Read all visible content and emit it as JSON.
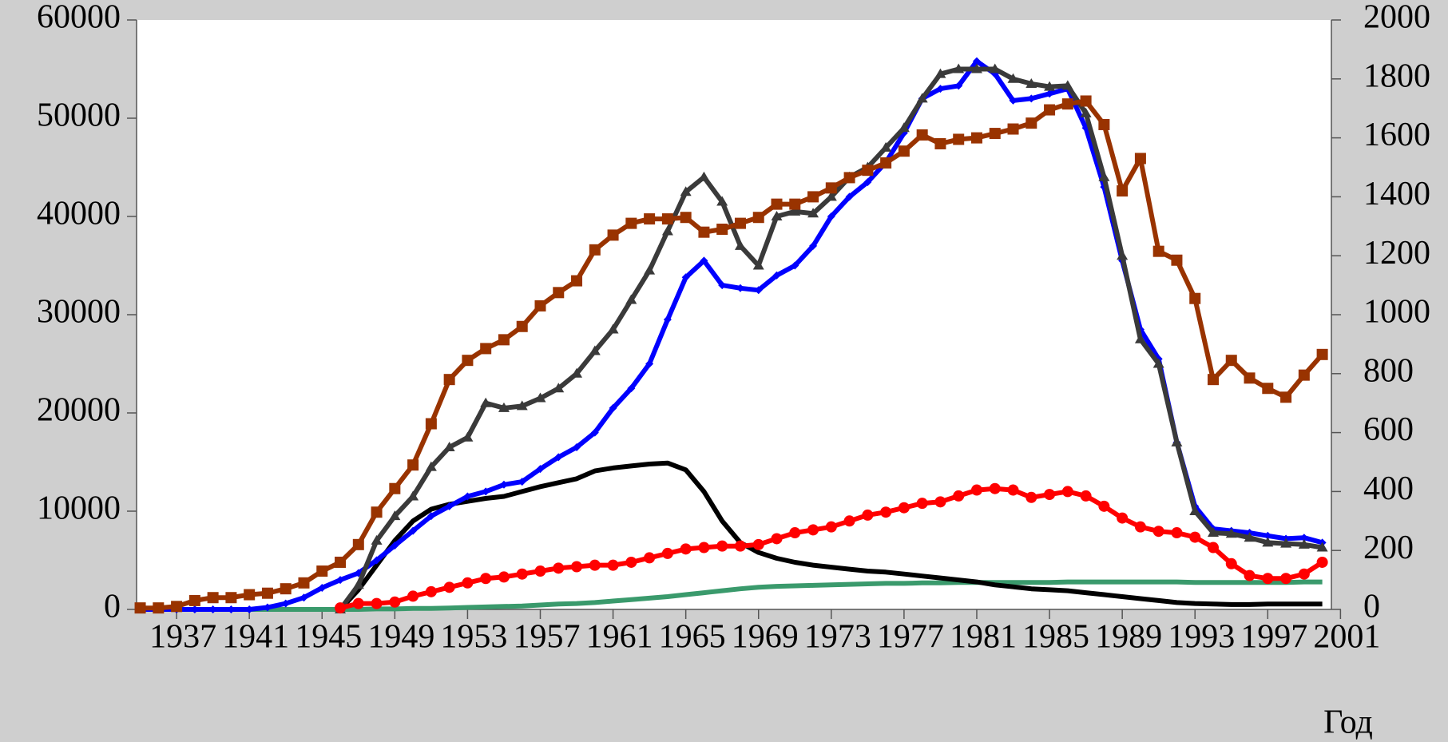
{
  "chart_data": {
    "type": "line",
    "x_label": "Год",
    "x": [
      1935,
      1936,
      1937,
      1938,
      1939,
      1940,
      1941,
      1942,
      1943,
      1944,
      1945,
      1946,
      1947,
      1948,
      1949,
      1950,
      1951,
      1952,
      1953,
      1954,
      1955,
      1956,
      1957,
      1958,
      1959,
      1960,
      1961,
      1962,
      1963,
      1964,
      1965,
      1966,
      1967,
      1968,
      1969,
      1970,
      1971,
      1972,
      1973,
      1974,
      1975,
      1976,
      1977,
      1978,
      1979,
      1980,
      1981,
      1982,
      1983,
      1984,
      1985,
      1986,
      1987,
      1988,
      1989,
      1990,
      1991,
      1992,
      1993,
      1994,
      1995,
      1996,
      1997,
      1998,
      1999,
      2000
    ],
    "xlim": [
      1934.8,
      2000.5
    ],
    "xticks": [
      1937,
      1941,
      1945,
      1949,
      1953,
      1957,
      1961,
      1965,
      1969,
      1973,
      1977,
      1981,
      1985,
      1989,
      1993,
      1997,
      2001
    ],
    "ylim": [
      0,
      60000
    ],
    "yticks": [
      0,
      10000,
      20000,
      30000,
      40000,
      50000,
      60000
    ],
    "y2lim": [
      0,
      2000
    ],
    "y2ticks": [
      0,
      200,
      400,
      600,
      800,
      1000,
      1200,
      1400,
      1600,
      1800,
      2000
    ],
    "series": [
      {
        "color": "#3a9a6c",
        "marker": "none",
        "values": [
          0,
          0,
          0,
          0,
          0,
          0,
          0,
          0,
          0,
          0,
          0,
          0,
          0,
          50,
          50,
          100,
          100,
          150,
          200,
          250,
          300,
          350,
          450,
          550,
          600,
          700,
          850,
          1000,
          1150,
          1300,
          1500,
          1700,
          1900,
          2100,
          2250,
          2350,
          2400,
          2450,
          2500,
          2550,
          2600,
          2650,
          2650,
          2700,
          2700,
          2750,
          2750,
          2750,
          2750,
          2750,
          2750,
          2800,
          2800,
          2800,
          2800,
          2800,
          2800,
          2800,
          2750,
          2750,
          2750,
          2750,
          2750,
          2750,
          2800,
          2800
        ]
      },
      {
        "color": "#000000",
        "marker": "none",
        "values": [
          null,
          null,
          null,
          null,
          null,
          null,
          null,
          null,
          null,
          null,
          null,
          0,
          2000,
          4500,
          7000,
          9000,
          10200,
          10700,
          11000,
          11300,
          11500,
          12000,
          12500,
          12900,
          13300,
          14100,
          14400,
          14600,
          14800,
          14900,
          14200,
          12000,
          9000,
          6800,
          5800,
          5200,
          4800,
          4500,
          4300,
          4100,
          3900,
          3800,
          3600,
          3400,
          3200,
          3000,
          2800,
          2500,
          2300,
          2100,
          2000,
          1900,
          1700,
          1500,
          1300,
          1100,
          900,
          700,
          600,
          550,
          500,
          500,
          550,
          550,
          550,
          550
        ]
      },
      {
        "color": "#0000ff",
        "marker": "diamond",
        "values": [
          0,
          0,
          0,
          0,
          0,
          0,
          0,
          200,
          600,
          1200,
          2200,
          3000,
          3700,
          5000,
          6500,
          8000,
          9500,
          10500,
          11500,
          12000,
          12700,
          13000,
          14300,
          15500,
          16500,
          18000,
          20500,
          22500,
          25000,
          29500,
          33800,
          35500,
          33000,
          32700,
          32500,
          34000,
          35000,
          37000,
          40000,
          42000,
          43500,
          45500,
          48500,
          52000,
          53000,
          53300,
          55800,
          54500,
          51800,
          52000,
          52500,
          53000,
          49000,
          43000,
          35500,
          28500,
          25500,
          17000,
          10500,
          8200,
          8000,
          7800,
          7500,
          7200,
          7300,
          6800
        ]
      },
      {
        "color": "#3a3a3a",
        "marker": "triangle",
        "values": [
          null,
          null,
          null,
          null,
          null,
          null,
          null,
          null,
          null,
          null,
          null,
          0,
          2500,
          7000,
          9500,
          11500,
          14500,
          16500,
          17500,
          21000,
          20500,
          20700,
          21500,
          22500,
          24000,
          26300,
          28500,
          31500,
          34500,
          38500,
          42500,
          44000,
          41500,
          37000,
          35000,
          40000,
          40500,
          40300,
          42000,
          44000,
          45000,
          47000,
          49000,
          52000,
          54500,
          55000,
          55000,
          55000,
          54000,
          53500,
          53200,
          53300,
          50500,
          44000,
          36000,
          27500,
          25000,
          17000,
          10000,
          7800,
          7700,
          7300,
          6800,
          6700,
          6600,
          6300
        ]
      },
      {
        "color": "#ff0000",
        "marker": "circle",
        "axis": "y2",
        "values": [
          null,
          null,
          null,
          null,
          null,
          null,
          null,
          null,
          null,
          null,
          null,
          5,
          20,
          20,
          25,
          45,
          60,
          75,
          90,
          105,
          110,
          120,
          130,
          140,
          145,
          150,
          150,
          160,
          175,
          190,
          205,
          210,
          215,
          215,
          220,
          240,
          260,
          270,
          280,
          300,
          320,
          330,
          345,
          360,
          365,
          385,
          405,
          410,
          405,
          380,
          390,
          400,
          385,
          350,
          310,
          280,
          265,
          260,
          245,
          210,
          155,
          115,
          105,
          105,
          120,
          160
        ]
      },
      {
        "color": "#993300",
        "marker": "square",
        "axis": "y2",
        "values": [
          5,
          5,
          10,
          30,
          40,
          40,
          50,
          55,
          70,
          90,
          130,
          160,
          220,
          330,
          410,
          490,
          630,
          780,
          845,
          885,
          915,
          960,
          1030,
          1075,
          1115,
          1220,
          1270,
          1310,
          1325,
          1325,
          1330,
          1280,
          1290,
          1310,
          1330,
          1375,
          1375,
          1400,
          1430,
          1465,
          1490,
          1515,
          1555,
          1610,
          1580,
          1595,
          1600,
          1615,
          1630,
          1650,
          1695,
          1715,
          1725,
          1645,
          1420,
          1530,
          1215,
          1185,
          1055,
          780,
          845,
          785,
          750,
          720,
          795,
          865
        ]
      }
    ]
  }
}
